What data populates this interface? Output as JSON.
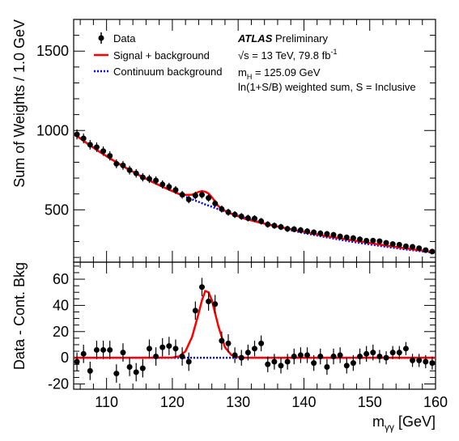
{
  "chart_data": [
    {
      "type": "scatter",
      "panel": "main",
      "ylabel": "Sum of Weights / 1.0 GeV",
      "xlim": [
        105,
        160
      ],
      "ylim": [
        170,
        1700
      ],
      "yticks": [
        500,
        1000,
        1500
      ],
      "legend": {
        "placement": "top-left",
        "entries": [
          "Data",
          "Signal + background",
          "Continuum background"
        ]
      },
      "annotations": {
        "experiment_bold": "ATLAS",
        "experiment_rest": " Preliminary",
        "energy_prefix": "√s = 13 TeV, 79.8 fb",
        "energy_sup": "-1",
        "mass_prefix": "m",
        "mass_sub": "H",
        "mass_rest": " = 125.09 GeV",
        "weighting": "ln(1+S/B) weighted sum, S = Inclusive"
      },
      "series": [
        {
          "name": "Data",
          "style": "points",
          "color": "#000000",
          "x": [
            105.5,
            106.5,
            107.5,
            108.5,
            109.5,
            110.5,
            111.5,
            112.5,
            113.5,
            114.5,
            115.5,
            116.5,
            117.5,
            118.5,
            119.5,
            120.5,
            121.5,
            122.5,
            123.5,
            124.5,
            125.5,
            126.5,
            127.5,
            128.5,
            129.5,
            130.5,
            131.5,
            132.5,
            133.5,
            134.5,
            135.5,
            136.5,
            137.5,
            138.5,
            139.5,
            140.5,
            141.5,
            142.5,
            143.5,
            144.5,
            145.5,
            146.5,
            147.5,
            148.5,
            149.5,
            150.5,
            151.5,
            152.5,
            153.5,
            154.5,
            155.5,
            156.5,
            157.5,
            158.5,
            159.5
          ],
          "y": [
            975,
            950,
            910,
            895,
            870,
            840,
            790,
            780,
            750,
            730,
            705,
            695,
            685,
            660,
            645,
            625,
            595,
            565,
            590,
            595,
            575,
            540,
            505,
            485,
            470,
            458,
            448,
            445,
            428,
            408,
            400,
            392,
            380,
            378,
            372,
            365,
            358,
            352,
            348,
            342,
            332,
            326,
            322,
            314,
            305,
            306,
            302,
            292,
            284,
            280,
            270,
            267,
            258,
            246,
            237
          ]
        },
        {
          "name": "Signal + background",
          "style": "line",
          "color": "#ff0000",
          "x": [
            105,
            107,
            109,
            111,
            113,
            115,
            117,
            119,
            121,
            122,
            123,
            124,
            124.5,
            125,
            125.5,
            126,
            127,
            128,
            129,
            131,
            133,
            135,
            137,
            140,
            143,
            146,
            149,
            152,
            155,
            158,
            160
          ],
          "y": [
            980,
            920,
            864,
            812,
            763,
            717,
            675,
            636,
            600,
            594,
            595,
            613,
            618,
            614,
            603,
            580,
            523,
            494,
            475,
            444,
            422,
            404,
            386,
            361,
            337,
            317,
            297,
            278,
            260,
            243,
            232
          ]
        },
        {
          "name": "Continuum background",
          "style": "dotted-line",
          "color": "#0000ff",
          "x": [
            105,
            107,
            109,
            111,
            113,
            115,
            117,
            119,
            121,
            123,
            125,
            127,
            129,
            131,
            133,
            135,
            137,
            140,
            143,
            146,
            149,
            152,
            155,
            158,
            160
          ],
          "y": [
            980,
            920,
            864,
            812,
            763,
            717,
            675,
            636,
            600,
            566,
            534,
            504,
            476,
            449,
            425,
            402,
            380,
            354,
            330,
            308,
            288,
            270,
            253,
            238,
            229
          ]
        }
      ]
    },
    {
      "type": "scatter",
      "panel": "residual",
      "xlabel_main": "m",
      "xlabel_sub": "γγ",
      "xlabel_unit": " [GeV]",
      "ylabel": "Data - Cont. Bkg",
      "xlim": [
        105,
        160
      ],
      "ylim": [
        -24,
        73
      ],
      "yticks": [
        -20,
        0,
        20,
        40,
        60
      ],
      "xticks": [
        110,
        120,
        130,
        140,
        150,
        160
      ],
      "series": [
        {
          "name": "Data",
          "style": "points",
          "color": "#000000",
          "x": [
            105.5,
            106.5,
            107.5,
            108.5,
            109.5,
            110.5,
            111.5,
            112.5,
            113.5,
            114.5,
            115.5,
            116.5,
            117.5,
            118.5,
            119.5,
            120.5,
            121.5,
            122.5,
            123.5,
            124.5,
            125.5,
            126.5,
            127.5,
            128.5,
            129.5,
            130.5,
            131.5,
            132.5,
            133.5,
            134.5,
            135.5,
            136.5,
            137.5,
            138.5,
            139.5,
            140.5,
            141.5,
            142.5,
            143.5,
            144.5,
            145.5,
            146.5,
            147.5,
            148.5,
            149.5,
            150.5,
            151.5,
            152.5,
            153.5,
            154.5,
            155.5,
            156.5,
            157.5,
            158.5,
            159.5
          ],
          "y": [
            -3,
            3,
            -10,
            6,
            6,
            6,
            -12,
            4,
            -7,
            -11,
            -8,
            7,
            1,
            8,
            9,
            7,
            1,
            -3,
            36,
            54,
            43,
            41,
            13,
            11,
            2,
            0,
            4,
            7,
            11,
            -5,
            -3,
            -6,
            -3,
            1,
            2,
            2,
            -4,
            1,
            -7,
            1,
            2,
            -6,
            -4,
            1,
            3,
            4,
            1,
            0,
            4,
            4,
            7,
            -2,
            -2,
            -3,
            -4
          ],
          "yerr": [
            7,
            7,
            7,
            7,
            7,
            7,
            7,
            7,
            7,
            7,
            7,
            7,
            7,
            7,
            7,
            7,
            7,
            7,
            7,
            7,
            7,
            7,
            7,
            7,
            6,
            6,
            6,
            6,
            6,
            6,
            6,
            6,
            6,
            6,
            6,
            6,
            6,
            6,
            6,
            6,
            6,
            6,
            6,
            6,
            6,
            6,
            5,
            5,
            5,
            5,
            5,
            5,
            5,
            5,
            5
          ]
        },
        {
          "name": "Signal",
          "style": "line",
          "color": "#ff0000",
          "x": [
            105,
            115,
            120,
            121,
            122,
            123,
            124,
            124.5,
            125,
            125.5,
            126,
            127,
            128,
            129,
            130,
            131,
            135,
            145,
            160
          ],
          "y": [
            0,
            0,
            0.2,
            1,
            5,
            16,
            34,
            44,
            51,
            50,
            44,
            24,
            8,
            2,
            0.5,
            0,
            0,
            0,
            0
          ]
        },
        {
          "name": "Continuum background",
          "style": "dotted-line",
          "color": "#0000ff",
          "x": [
            105,
            160
          ],
          "y": [
            0,
            0
          ]
        }
      ]
    }
  ]
}
